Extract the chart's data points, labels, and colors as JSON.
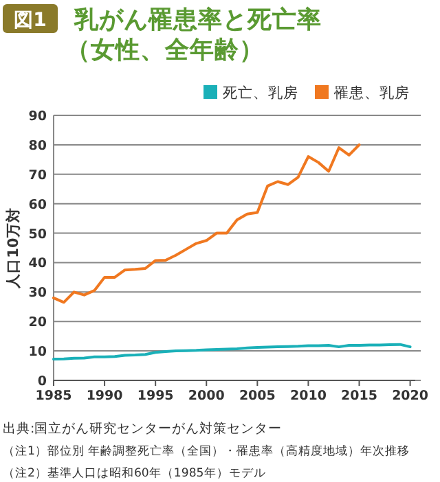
{
  "chart_data": {
    "type": "line",
    "title": "乳がん罹患率と死亡率（女性、全年齢）",
    "ylabel": "人口10万対",
    "annotations": [
      "図1",
      "出典:国立がん研究センターがん対策センター",
      "（注1）部位別 年齢調整死亡率（全国）・罹患率（高精度地域）年次推移",
      "（注2）基準人口は昭和60年（1985年）モデル"
    ],
    "series": [
      {
        "name": "死亡、乳房",
        "color": "#1ab0b8",
        "x": [
          1985,
          1986,
          1987,
          1988,
          1989,
          1990,
          1991,
          1992,
          1993,
          1994,
          1995,
          1996,
          1997,
          1998,
          1999,
          2000,
          2001,
          2002,
          2003,
          2004,
          2005,
          2006,
          2007,
          2008,
          2009,
          2010,
          2011,
          2012,
          2013,
          2014,
          2015,
          2016,
          2017,
          2018,
          2019,
          2020
        ],
        "values": [
          7.2,
          7.3,
          7.5,
          7.6,
          8,
          8,
          8.1,
          8.5,
          8.6,
          8.8,
          9.5,
          9.8,
          10,
          10.1,
          10.2,
          10.4,
          10.5,
          10.6,
          10.7,
          11,
          11.2,
          11.3,
          11.4,
          11.5,
          11.6,
          11.8,
          11.8,
          11.9,
          11.4,
          11.9,
          11.9,
          12,
          12,
          12.1,
          12.2,
          11.4
        ]
      },
      {
        "name": "罹患、乳房",
        "color": "#f07820",
        "x": [
          1985,
          1986,
          1987,
          1988,
          1989,
          1990,
          1991,
          1992,
          1993,
          1994,
          1995,
          1996,
          1997,
          1998,
          1999,
          2000,
          2001,
          2002,
          2003,
          2004,
          2005,
          2006,
          2007,
          2008,
          2009,
          2010,
          2011,
          2012,
          2013,
          2014,
          2015
        ],
        "values": [
          28,
          26.5,
          30,
          29,
          30.5,
          35,
          35,
          37.5,
          37.7,
          38,
          40.7,
          40.8,
          42.5,
          44.5,
          46.5,
          47.5,
          50,
          50,
          54.5,
          56.5,
          57,
          66,
          67.5,
          66.5,
          69,
          76,
          74,
          71,
          79,
          76.5,
          80
        ]
      }
    ],
    "xlim": [
      1985,
      2020.5
    ],
    "xticks": [
      1985,
      1990,
      1995,
      2000,
      2005,
      2010,
      2015,
      2020
    ],
    "ylim": [
      0,
      90
    ],
    "yticks": [
      0,
      10,
      20,
      30,
      40,
      50,
      60,
      70,
      80,
      90
    ],
    "grid": "y",
    "legend": "top right",
    "marker": "none",
    "line_style": "solid"
  }
}
